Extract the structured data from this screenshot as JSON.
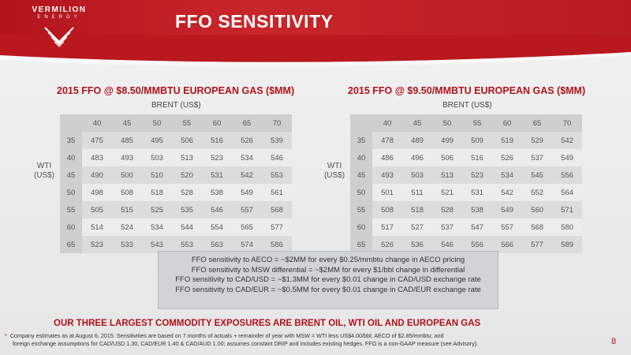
{
  "brand": {
    "name": "VERMILION",
    "sub": "ENERGY",
    "colors": {
      "primary": "#b3141c",
      "text_accent": "#b1121a",
      "notes_bg": "#d0d3d8"
    }
  },
  "title": "FFO SENSITIVITY",
  "tables": [
    {
      "title": "2015 FFO @ $8.50/MMBTU EUROPEAN GAS ($MM)",
      "col_group": "BRENT (US$)",
      "row_group": [
        "WTI",
        "(US$)"
      ],
      "columns": [
        "40",
        "45",
        "50",
        "55",
        "60",
        "65",
        "70"
      ],
      "rows": [
        {
          "wti": "35",
          "values": [
            "475",
            "485",
            "495",
            "506",
            "516",
            "526",
            "539"
          ]
        },
        {
          "wti": "40",
          "values": [
            "483",
            "493",
            "503",
            "513",
            "523",
            "534",
            "546"
          ]
        },
        {
          "wti": "45",
          "values": [
            "490",
            "500",
            "510",
            "520",
            "531",
            "542",
            "553"
          ]
        },
        {
          "wti": "50",
          "values": [
            "498",
            "508",
            "518",
            "528",
            "538",
            "549",
            "561"
          ]
        },
        {
          "wti": "55",
          "values": [
            "505",
            "515",
            "525",
            "535",
            "546",
            "557",
            "568"
          ]
        },
        {
          "wti": "60",
          "values": [
            "514",
            "524",
            "534",
            "544",
            "554",
            "565",
            "577"
          ]
        },
        {
          "wti": "65",
          "values": [
            "523",
            "533",
            "543",
            "553",
            "563",
            "574",
            "586"
          ]
        }
      ]
    },
    {
      "title": "2015 FFO @ $9.50/MMBTU EUROPEAN GAS ($MM)",
      "col_group": "BRENT (US$)",
      "row_group": [
        "WTI",
        "(US$)"
      ],
      "columns": [
        "40",
        "45",
        "50",
        "55",
        "60",
        "65",
        "70"
      ],
      "rows": [
        {
          "wti": "35",
          "values": [
            "478",
            "489",
            "499",
            "509",
            "519",
            "529",
            "542"
          ]
        },
        {
          "wti": "40",
          "values": [
            "486",
            "496",
            "506",
            "516",
            "526",
            "537",
            "549"
          ]
        },
        {
          "wti": "45",
          "values": [
            "493",
            "503",
            "513",
            "523",
            "534",
            "545",
            "556"
          ]
        },
        {
          "wti": "50",
          "values": [
            "501",
            "511",
            "521",
            "531",
            "542",
            "552",
            "564"
          ]
        },
        {
          "wti": "55",
          "values": [
            "508",
            "518",
            "528",
            "538",
            "549",
            "560",
            "571"
          ]
        },
        {
          "wti": "60",
          "values": [
            "517",
            "527",
            "537",
            "547",
            "557",
            "568",
            "580"
          ]
        },
        {
          "wti": "65",
          "values": [
            "526",
            "536",
            "546",
            "556",
            "566",
            "577",
            "589"
          ]
        }
      ]
    }
  ],
  "notes": [
    "FFO sensitivity to AECO = ~$2MM for every $0.25/mmbtu change in AECO pricing",
    "FFO sensitivity to MSW differential = ~$2MM for every $1/bbl change in differential",
    "FFO sensitivity to CAD/USD = ~$1.3MM for every $0.01 change in CAD/USD exchange rate",
    "FFO sensitivity to CAD/EUR = ~$0.5MM for every $0.01 change in CAD/EUR exchange rate"
  ],
  "tagline": "OUR THREE LARGEST COMMODITY EXPOSURES ARE BRENT OIL, WTI OIL AND EUROPEAN GAS",
  "footnote": {
    "marker": "*",
    "line1": "Company estimates as at August 6, 2015.  Sensitivities are based on 7 months of actuals + remainder of year with MSW = WTI less US$4.00/bbl; AECO of $2.85/mmbtu; and",
    "line2": "foreign exchange assumptions for CAD/USD 1.30, CAD/EUR 1.40 & CAD/AUD 1.00; assumes constant DRIP and includes existing hedges.  FFO is a non-GAAP measure (see Advisory)."
  },
  "page_number": "8"
}
